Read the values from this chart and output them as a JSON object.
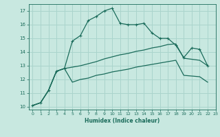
{
  "bg_color": "#c8e8e0",
  "grid_color": "#aad4cc",
  "line_color": "#1a6b5a",
  "xlabel": "Humidex (Indice chaleur)",
  "xlim": [
    -0.5,
    23
  ],
  "ylim": [
    9.8,
    17.5
  ],
  "yticks": [
    10,
    11,
    12,
    13,
    14,
    15,
    16,
    17
  ],
  "xticks": [
    0,
    1,
    2,
    3,
    4,
    5,
    6,
    7,
    8,
    9,
    10,
    11,
    12,
    13,
    14,
    15,
    16,
    17,
    18,
    19,
    20,
    21,
    22,
    23
  ],
  "series1_x": [
    0,
    1,
    2,
    3,
    4,
    5,
    6,
    7,
    8,
    9,
    10,
    11,
    12,
    13,
    14,
    15,
    16,
    17,
    18,
    19,
    20,
    21,
    22
  ],
  "series1_y": [
    10.1,
    10.3,
    11.2,
    12.6,
    12.8,
    14.8,
    15.2,
    16.3,
    16.6,
    17.0,
    17.2,
    16.1,
    16.0,
    16.0,
    16.1,
    15.4,
    15.0,
    15.0,
    14.5,
    13.6,
    14.3,
    14.2,
    13.0
  ],
  "series2_x": [
    0,
    1,
    2,
    3,
    4,
    5,
    6,
    7,
    8,
    9,
    10,
    11,
    12,
    13,
    14,
    15,
    16,
    17,
    18,
    19,
    21,
    22
  ],
  "series2_y": [
    10.1,
    10.3,
    11.2,
    12.6,
    12.8,
    12.9,
    13.0,
    13.15,
    13.3,
    13.5,
    13.65,
    13.8,
    13.9,
    14.05,
    14.15,
    14.3,
    14.4,
    14.55,
    14.6,
    13.55,
    13.4,
    13.0
  ],
  "series3_x": [
    0,
    1,
    2,
    3,
    4,
    5,
    6,
    7,
    8,
    9,
    10,
    11,
    12,
    13,
    14,
    15,
    16,
    17,
    18,
    19,
    21,
    22
  ],
  "series3_y": [
    10.1,
    10.3,
    11.2,
    12.6,
    12.8,
    11.8,
    12.0,
    12.1,
    12.3,
    12.4,
    12.55,
    12.65,
    12.75,
    12.9,
    13.0,
    13.1,
    13.2,
    13.3,
    13.4,
    12.3,
    12.2,
    11.8
  ]
}
